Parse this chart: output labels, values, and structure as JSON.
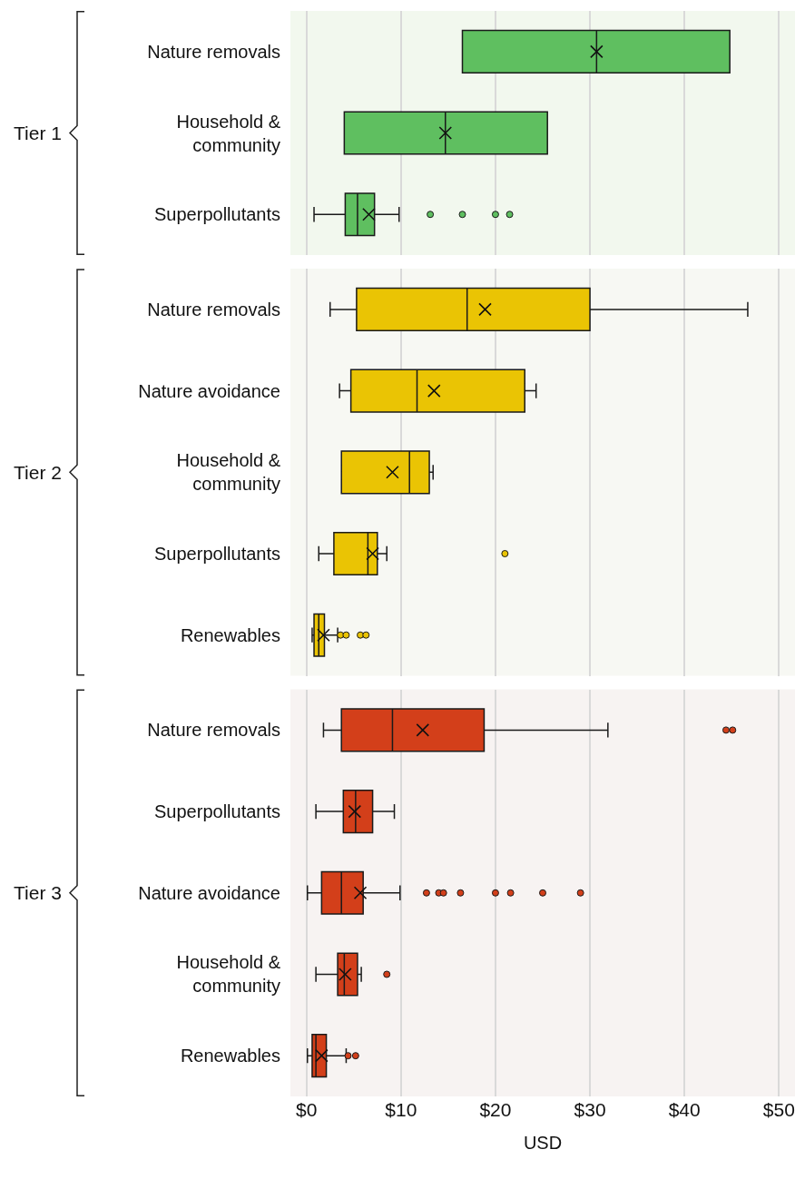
{
  "chart_data": [
    {
      "type": "box",
      "orientation": "horizontal",
      "ylabel": "Tier 1",
      "categories": [
        "Nature removals",
        "Household &\ncommunity",
        "Superpollutants"
      ],
      "series": [
        {
          "color": "#5fbf60",
          "boxes": [
            {
              "low": 16.5,
              "q1": 16.5,
              "median": 30.7,
              "q3": 44.8,
              "high": 44.8,
              "mean": 30.7
            },
            {
              "low": 4.0,
              "q1": 4.0,
              "median": 14.7,
              "q3": 25.5,
              "high": 25.5,
              "mean": 14.7
            },
            {
              "low": 0.8,
              "q1": 4.1,
              "median": 5.4,
              "q3": 7.2,
              "high": 9.8,
              "mean": 6.6,
              "outliers": [
                13.1,
                16.5,
                20.0,
                21.5
              ]
            }
          ]
        }
      ],
      "xlim": [
        -1.7,
        51.7
      ],
      "xticks": [
        {
          "value": 0,
          "label": null
        },
        {
          "value": 10,
          "label": null
        },
        {
          "value": 20,
          "label": null
        },
        {
          "value": 30,
          "label": null
        },
        {
          "value": 40,
          "label": null
        },
        {
          "value": 50,
          "label": null
        }
      ],
      "grid": "x",
      "tick_labels": "y"
    },
    {
      "type": "box",
      "orientation": "horizontal",
      "ylabel": "Tier 2",
      "categories": [
        "Nature removals",
        "Nature avoidance",
        "Household &\ncommunity",
        "Superpollutants",
        "Renewables"
      ],
      "series": [
        {
          "color": "#eac404",
          "boxes": [
            {
              "low": 2.5,
              "q1": 5.3,
              "median": 17.0,
              "q3": 30.0,
              "high": 46.7,
              "mean": 18.9
            },
            {
              "low": 3.5,
              "q1": 4.7,
              "median": 11.7,
              "q3": 23.1,
              "high": 24.3,
              "mean": 13.5
            },
            {
              "low": 3.7,
              "q1": 3.7,
              "median": 10.9,
              "q3": 13.0,
              "high": 13.4,
              "mean": 9.1
            },
            {
              "low": 1.3,
              "q1": 2.9,
              "median": 6.5,
              "q3": 7.5,
              "high": 8.5,
              "mean": 7.0,
              "outliers": [
                21.0
              ]
            },
            {
              "low": 0.6,
              "q1": 0.8,
              "median": 1.3,
              "q3": 1.9,
              "high": 3.3,
              "mean": 1.8,
              "outliers": [
                3.6,
                4.2,
                5.7,
                6.3
              ]
            }
          ]
        }
      ],
      "xlim": [
        -1.7,
        51.7
      ],
      "xticks": [
        {
          "value": 0,
          "label": null
        },
        {
          "value": 10,
          "label": null
        },
        {
          "value": 20,
          "label": null
        },
        {
          "value": 30,
          "label": null
        },
        {
          "value": 40,
          "label": null
        },
        {
          "value": 50,
          "label": null
        }
      ],
      "grid": "x",
      "tick_labels": "y"
    },
    {
      "type": "box",
      "orientation": "horizontal",
      "ylabel": "Tier 3",
      "xlabel": "USD",
      "categories": [
        "Nature removals",
        "Superpollutants",
        "Nature avoidance",
        "Household &\ncommunity",
        "Renewables"
      ],
      "series": [
        {
          "color": "#d33f1a",
          "boxes": [
            {
              "low": 1.8,
              "q1": 3.7,
              "median": 9.1,
              "q3": 18.8,
              "high": 31.9,
              "mean": 12.3,
              "outliers": [
                44.4,
                45.1
              ]
            },
            {
              "low": 1.0,
              "q1": 3.9,
              "median": 5.2,
              "q3": 7.0,
              "high": 9.3,
              "mean": 5.1
            },
            {
              "low": 0.1,
              "q1": 1.6,
              "median": 3.7,
              "q3": 6.0,
              "high": 9.9,
              "mean": 5.7,
              "outliers": [
                12.7,
                14.0,
                14.5,
                16.3,
                20.0,
                21.6,
                25.0,
                29.0
              ]
            },
            {
              "low": 1.0,
              "q1": 3.3,
              "median": 4.0,
              "q3": 5.4,
              "high": 5.8,
              "mean": 4.1,
              "outliers": [
                8.5
              ]
            },
            {
              "low": 0.1,
              "q1": 0.6,
              "median": 1.0,
              "q3": 2.1,
              "high": 4.2,
              "mean": 1.6,
              "outliers": [
                4.4,
                5.2
              ]
            }
          ]
        }
      ],
      "xlim": [
        -1.7,
        51.7
      ],
      "xticks": [
        {
          "value": 0,
          "label": "$0"
        },
        {
          "value": 10,
          "label": "$10"
        },
        {
          "value": 20,
          "label": "$20"
        },
        {
          "value": 30,
          "label": "$30"
        },
        {
          "value": 40,
          "label": "$40"
        },
        {
          "value": 50,
          "label": "$50"
        }
      ],
      "grid": "x"
    }
  ]
}
